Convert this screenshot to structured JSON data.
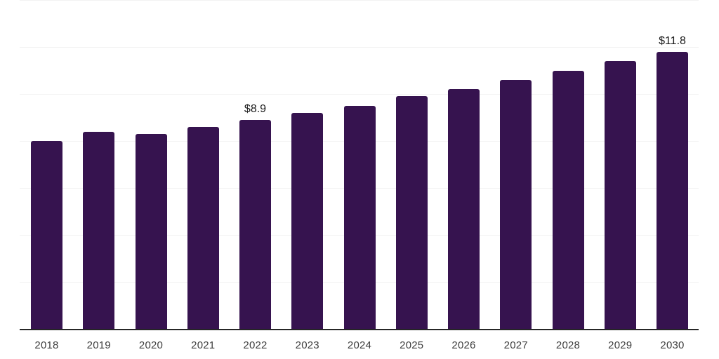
{
  "chart_data": {
    "type": "bar",
    "categories": [
      "2018",
      "2019",
      "2020",
      "2021",
      "2022",
      "2023",
      "2024",
      "2025",
      "2026",
      "2027",
      "2028",
      "2029",
      "2030"
    ],
    "values": [
      8.0,
      8.4,
      8.3,
      8.6,
      8.9,
      9.2,
      9.5,
      9.9,
      10.2,
      10.6,
      11.0,
      11.4,
      11.8
    ],
    "data_labels": {
      "2022": "$8.9",
      "2030": "$11.8"
    },
    "title": "",
    "xlabel": "",
    "ylabel": "",
    "ylim": [
      0,
      14
    ],
    "grid_step": 2,
    "grid": true,
    "legend": false,
    "colors": {
      "bar": "#36134f",
      "axis": "#262626",
      "gridline": "#f2f2f2",
      "tick_label": "#3d3d3d",
      "data_label": "#1a1a1a",
      "background": "#ffffff"
    }
  }
}
